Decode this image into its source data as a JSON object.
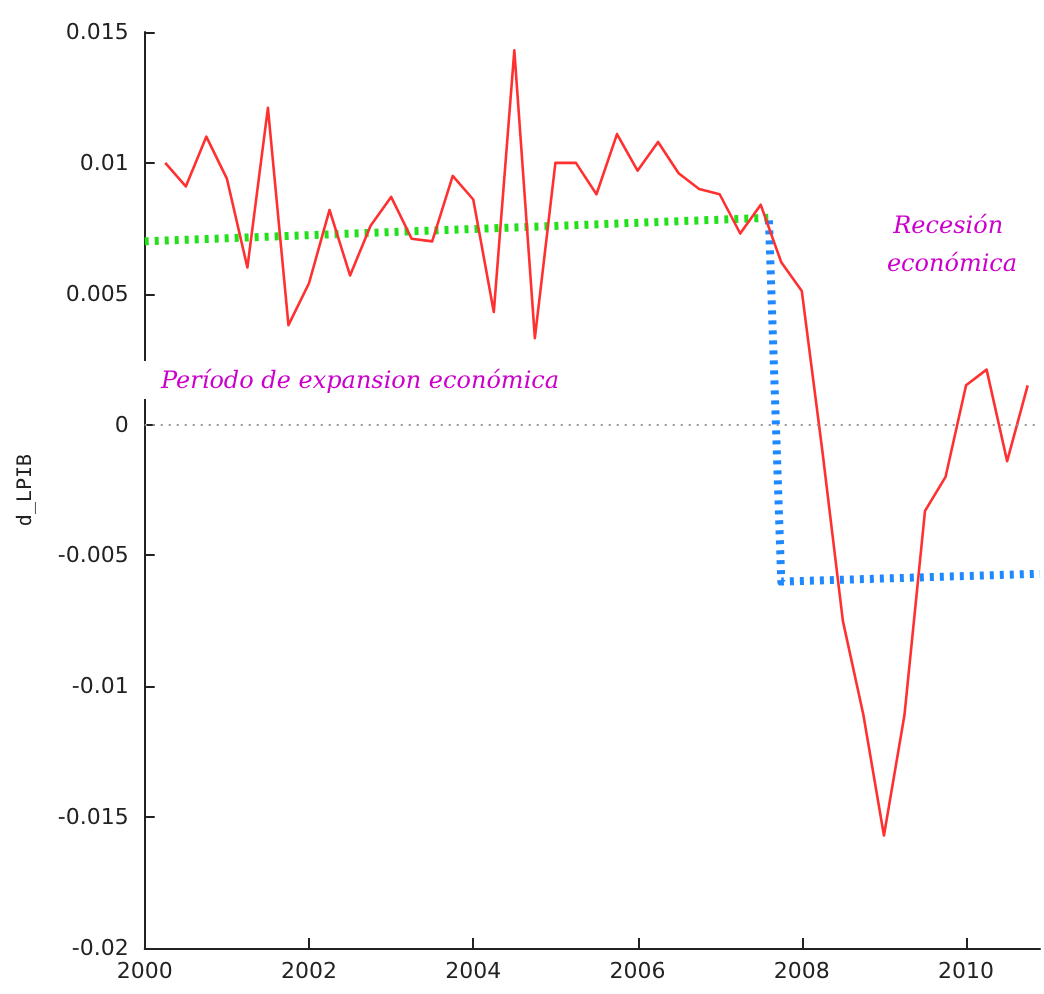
{
  "chart_data": {
    "type": "line",
    "ylabel": "d_LPIB",
    "xlim": [
      2000,
      2010.9
    ],
    "xticks": [
      2000,
      2002,
      2004,
      2006,
      2008,
      2010
    ],
    "ylim": [
      -0.02,
      0.015
    ],
    "yticks": [
      -0.02,
      -0.015,
      -0.01,
      -0.005,
      0,
      0.005,
      0.01,
      0.015
    ],
    "grid": false,
    "marker": "none",
    "line_style": "solid",
    "series": [
      {
        "color": "#ff3030",
        "x": [
          2000.25,
          2000.5,
          2000.75,
          2001,
          2001.25,
          2001.5,
          2001.75,
          2002,
          2002.25,
          2002.5,
          2002.75,
          2003,
          2003.25,
          2003.5,
          2003.75,
          2004,
          2004.25,
          2004.5,
          2004.75,
          2005,
          2005.25,
          2005.5,
          2005.75,
          2006,
          2006.25,
          2006.5,
          2006.75,
          2007,
          2007.25,
          2007.5,
          2007.75,
          2008,
          2008.25,
          2008.5,
          2008.75,
          2009,
          2009.25,
          2009.5,
          2009.75,
          2010,
          2010.25,
          2010.5,
          2010.75
        ],
        "values": [
          0.01,
          0.0091,
          0.011,
          0.0094,
          0.006,
          0.0121,
          0.0038,
          0.0054,
          0.0082,
          0.0057,
          0.0076,
          0.0087,
          0.0071,
          0.007,
          0.0095,
          0.0086,
          0.0043,
          0.0143,
          0.0033,
          0.01,
          0.01,
          0.0088,
          0.0111,
          0.0097,
          0.0108,
          0.0096,
          0.009,
          0.0088,
          0.0073,
          0.0084,
          0.0062,
          0.0051,
          -0.001,
          -0.0075,
          -0.0111,
          -0.0157,
          -0.0111,
          -0.0033,
          -0.002,
          0.0015,
          0.0021,
          -0.0014,
          0.0015
        ]
      },
      {
        "color": "#22e01a",
        "line_style": "dotted",
        "x": [
          2000,
          2007.6
        ],
        "values": [
          0.007,
          0.0079
        ]
      },
      {
        "color": "#1e88ff",
        "line_style": "dotted",
        "x": [
          2007.6,
          2007.75,
          2010.9
        ],
        "values": [
          0.0078,
          -0.006,
          -0.0057
        ]
      }
    ],
    "ref_lines": [
      {
        "axis": "y",
        "value": 0,
        "color": "#999999",
        "line_style": "dotted"
      }
    ],
    "annotations": [
      "Período de expansion económica",
      "Recesión económica"
    ]
  }
}
